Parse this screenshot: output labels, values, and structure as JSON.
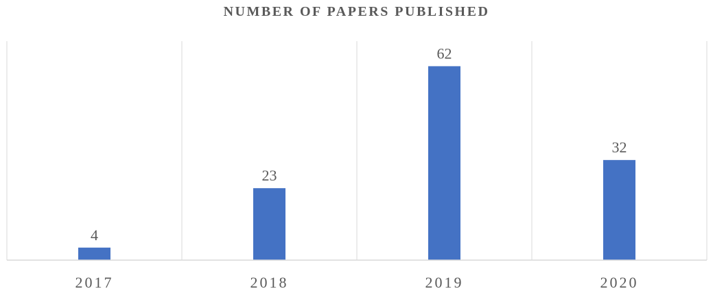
{
  "chart_data": {
    "type": "bar",
    "title": "NUMBER OF PAPERS PUBLISHED",
    "xlabel": "",
    "ylabel": "",
    "categories": [
      "2017",
      "2018",
      "2019",
      "2020"
    ],
    "values": [
      4,
      23,
      62,
      32
    ],
    "data_labels": [
      "4",
      "23",
      "62",
      "32"
    ],
    "ylim": [
      0,
      70
    ],
    "grid": "vertical category separators",
    "legend": "none",
    "bar_color": "#4472C4",
    "text_color": "#595959",
    "grid_color": "#D9D9D9"
  }
}
